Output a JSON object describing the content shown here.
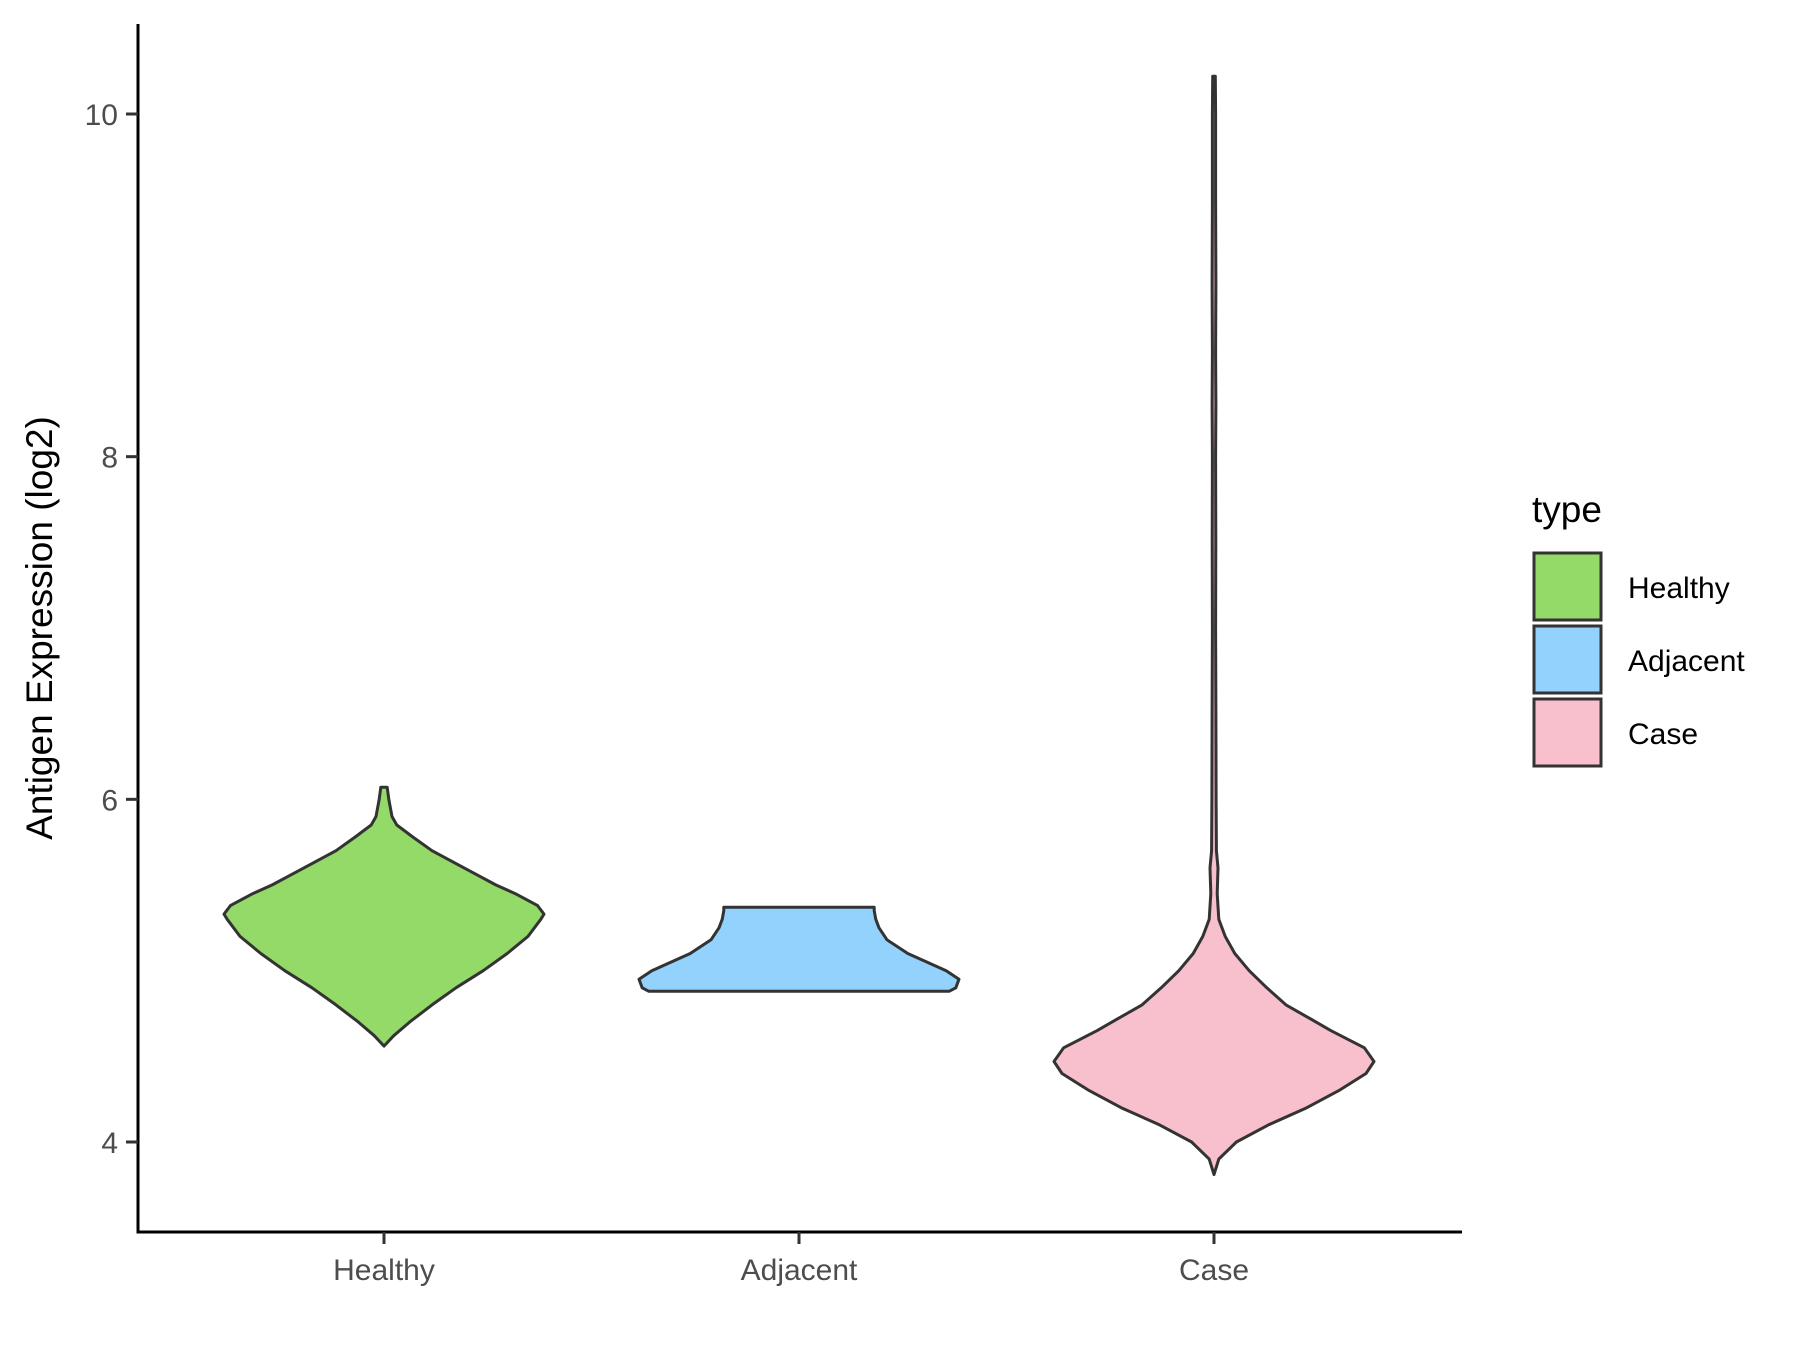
{
  "chart_data": {
    "type": "violin",
    "xlabel": "",
    "ylabel": "Antigen Expression (log2)",
    "ylim": [
      3.5,
      10.6
    ],
    "yticks": [
      "4",
      "6",
      "8",
      "10"
    ],
    "categories": [
      "Healthy",
      "Adjacent",
      "Case"
    ],
    "legend": {
      "title": "type",
      "placement": "right",
      "entries": [
        "Healthy",
        "Adjacent",
        "Case"
      ]
    },
    "colors": {
      "Healthy": "#93DA69",
      "Adjacent": "#92D2FC",
      "Case": "#F8C0CC",
      "outline": "#333333"
    },
    "series": [
      {
        "category": "Healthy",
        "min": 4.56,
        "max": 6.07,
        "profile": [
          [
            4.56,
            0
          ],
          [
            4.62,
            0.06
          ],
          [
            4.7,
            0.16
          ],
          [
            4.8,
            0.3
          ],
          [
            4.9,
            0.45
          ],
          [
            5.0,
            0.62
          ],
          [
            5.1,
            0.77
          ],
          [
            5.2,
            0.9
          ],
          [
            5.3,
            0.98
          ],
          [
            5.33,
            1.0
          ],
          [
            5.38,
            0.96
          ],
          [
            5.45,
            0.82
          ],
          [
            5.5,
            0.7
          ],
          [
            5.55,
            0.6
          ],
          [
            5.62,
            0.46
          ],
          [
            5.7,
            0.3
          ],
          [
            5.78,
            0.18
          ],
          [
            5.85,
            0.08
          ],
          [
            5.9,
            0.05
          ],
          [
            6.0,
            0.03
          ],
          [
            6.07,
            0.02
          ]
        ]
      },
      {
        "category": "Adjacent",
        "min": 4.88,
        "max": 5.37,
        "profile": [
          [
            4.88,
            0.94
          ],
          [
            4.9,
            0.98
          ],
          [
            4.95,
            1.0
          ],
          [
            5.0,
            0.92
          ],
          [
            5.05,
            0.8
          ],
          [
            5.1,
            0.68
          ],
          [
            5.18,
            0.55
          ],
          [
            5.25,
            0.5
          ],
          [
            5.3,
            0.48
          ],
          [
            5.35,
            0.47
          ],
          [
            5.37,
            0.47
          ]
        ]
      },
      {
        "category": "Case",
        "min": 3.81,
        "max": 10.22,
        "profile": [
          [
            3.81,
            0
          ],
          [
            3.9,
            0.03
          ],
          [
            4.0,
            0.14
          ],
          [
            4.1,
            0.34
          ],
          [
            4.2,
            0.58
          ],
          [
            4.3,
            0.78
          ],
          [
            4.4,
            0.95
          ],
          [
            4.47,
            1.0
          ],
          [
            4.55,
            0.94
          ],
          [
            4.65,
            0.73
          ],
          [
            4.72,
            0.6
          ],
          [
            4.8,
            0.45
          ],
          [
            4.9,
            0.33
          ],
          [
            5.0,
            0.22
          ],
          [
            5.1,
            0.13
          ],
          [
            5.2,
            0.07
          ],
          [
            5.3,
            0.03
          ],
          [
            5.45,
            0.02
          ],
          [
            5.6,
            0.025
          ],
          [
            5.7,
            0.015
          ],
          [
            6.0,
            0.013
          ],
          [
            6.5,
            0.012
          ],
          [
            7.0,
            0.01
          ],
          [
            7.5,
            0.011
          ],
          [
            8.0,
            0.01
          ],
          [
            8.3,
            0.012
          ],
          [
            8.6,
            0.01
          ],
          [
            9.0,
            0.012
          ],
          [
            9.5,
            0.01
          ],
          [
            10.0,
            0.01
          ],
          [
            10.22,
            0.008
          ]
        ]
      }
    ]
  }
}
